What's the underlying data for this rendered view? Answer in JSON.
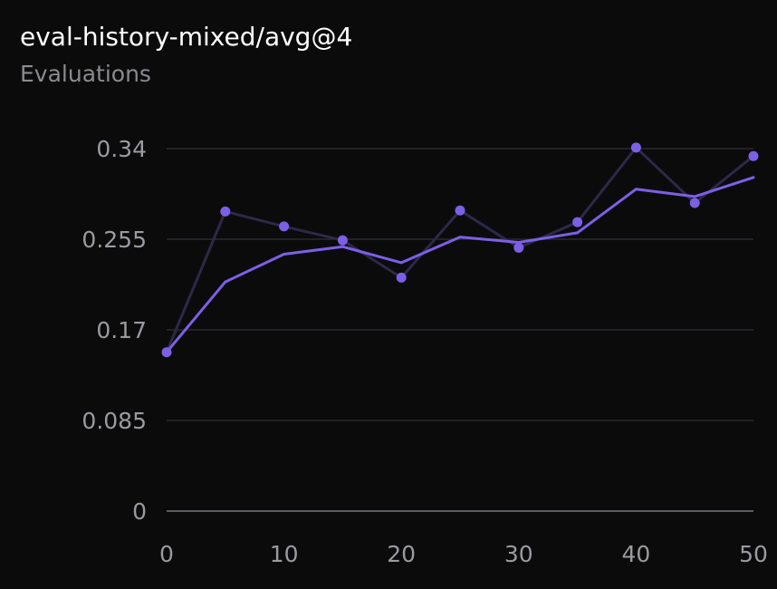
{
  "header": {
    "title": "eval-history-mixed/avg@4",
    "subtitle": "Evaluations"
  },
  "colors": {
    "background": "#0b0b0c",
    "grid": "#2a2a2e",
    "axis": "#5a5a60",
    "tick_label": "#9a9aa0",
    "raw_series": "#2e2848",
    "smoothed_series": "#7d5fe6",
    "point": "#7d5fe6"
  },
  "chart_data": {
    "type": "line",
    "title": "eval-history-mixed/avg@4",
    "subtitle": "Evaluations",
    "xlabel": "",
    "ylabel": "",
    "xlim": [
      0,
      50
    ],
    "ylim": [
      0,
      0.34
    ],
    "x_ticks": [
      0,
      10,
      20,
      30,
      40,
      50
    ],
    "y_ticks": [
      0,
      0.085,
      0.17,
      0.255,
      0.34
    ],
    "y_tick_labels": [
      "0",
      "0.085",
      "0.17",
      "0.255",
      "0.34"
    ],
    "x_tick_labels": [
      "0",
      "10",
      "20",
      "30",
      "40",
      "50"
    ],
    "grid": true,
    "series": [
      {
        "style": "raw-with-points",
        "x": [
          0,
          5,
          10,
          15,
          20,
          25,
          30,
          35,
          40,
          45,
          50
        ],
        "values": [
          0.149,
          0.281,
          0.267,
          0.254,
          0.219,
          0.282,
          0.247,
          0.271,
          0.341,
          0.289,
          0.333
        ]
      },
      {
        "style": "smoothed",
        "x": [
          0,
          5,
          10,
          15,
          20,
          25,
          30,
          35,
          40,
          45,
          50
        ],
        "values": [
          0.149,
          0.215,
          0.241,
          0.248,
          0.233,
          0.257,
          0.252,
          0.261,
          0.302,
          0.295,
          0.313
        ]
      }
    ]
  }
}
